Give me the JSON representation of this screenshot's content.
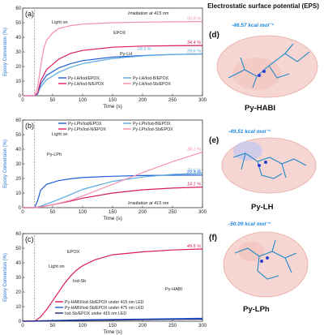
{
  "chart_data": [
    {
      "type": "line",
      "panel": "(a)",
      "xlabel": "Time (s)",
      "ylabel": "Epoxy Conversion (%)",
      "xlim": [
        0,
        300
      ],
      "ylim": [
        0,
        60
      ],
      "xticks": [
        0,
        50,
        100,
        150,
        200,
        250,
        300
      ],
      "yticks": [
        0,
        10,
        20,
        30,
        40,
        50,
        60
      ],
      "annotations": [
        "Irradiation at 415 nm",
        "Light on",
        "EPOX",
        "Py-LH"
      ],
      "legend_position": "bottom",
      "series": [
        {
          "name": "Py-LH/Iod/EPOX",
          "color": "#1f5fd6",
          "end_label": "",
          "points": [
            [
              0,
              0
            ],
            [
              20,
              0
            ],
            [
              25,
              1
            ],
            [
              30,
              8
            ],
            [
              40,
              14
            ],
            [
              60,
              19
            ],
            [
              80,
              22
            ],
            [
              100,
              24
            ],
            [
              150,
              26.5
            ],
            [
              200,
              27.5
            ],
            [
              250,
              28.2
            ],
            [
              300,
              28.6
            ]
          ]
        },
        {
          "name": "Py-LH/Iod-B/EPOX",
          "color": "#5aa8e0",
          "end_label": "28.6 %",
          "points": [
            [
              0,
              0
            ],
            [
              20,
              0
            ],
            [
              25,
              1
            ],
            [
              30,
              6
            ],
            [
              40,
              11
            ],
            [
              60,
              16
            ],
            [
              80,
              19.5
            ],
            [
              100,
              22
            ],
            [
              150,
              25.5
            ],
            [
              200,
              27.3
            ],
            [
              250,
              28.2
            ],
            [
              300,
              28.6
            ]
          ]
        },
        {
          "name": "Py-LH/Iod-N/EPOX",
          "color": "#d81b60",
          "end_label": "34.4 %",
          "points": [
            [
              0,
              0
            ],
            [
              20,
              0
            ],
            [
              25,
              2
            ],
            [
              30,
              10
            ],
            [
              40,
              18
            ],
            [
              60,
              25
            ],
            [
              80,
              29
            ],
            [
              100,
              31
            ],
            [
              150,
              33.2
            ],
            [
              200,
              34
            ],
            [
              250,
              34.2
            ],
            [
              300,
              34.4
            ]
          ]
        },
        {
          "name": "Py-LH/Iod-Sb/EPOX",
          "color": "#f48fb1",
          "end_label": "50.8 %",
          "points": [
            [
              0,
              0
            ],
            [
              20,
              0
            ],
            [
              25,
              6
            ],
            [
              30,
              20
            ],
            [
              35,
              32
            ],
            [
              40,
              38
            ],
            [
              50,
              43
            ],
            [
              60,
              46
            ],
            [
              80,
              48
            ],
            [
              100,
              49
            ],
            [
              150,
              50
            ],
            [
              200,
              50.4
            ],
            [
              250,
              50.6
            ],
            [
              300,
              50.8
            ]
          ]
        }
      ],
      "extra_labels": [
        "29.5 %"
      ]
    },
    {
      "type": "line",
      "panel": "(b)",
      "xlabel": "Time (s)",
      "ylabel": "Epoxy Conversion (%)",
      "xlim": [
        0,
        300
      ],
      "ylim": [
        0,
        60
      ],
      "xticks": [
        0,
        50,
        100,
        150,
        200,
        250,
        300
      ],
      "yticks": [
        0,
        10,
        20,
        30,
        40,
        50,
        60
      ],
      "annotations": [
        "Light on",
        "Py-LPh",
        "Irradiation at 415 nm"
      ],
      "legend_position": "top",
      "series": [
        {
          "name": "Py-LPh/Iod/EPOX",
          "color": "#1f5fd6",
          "end_label": "22.3 %",
          "points": [
            [
              0,
              0
            ],
            [
              20,
              0
            ],
            [
              25,
              5
            ],
            [
              30,
              12
            ],
            [
              40,
              16
            ],
            [
              60,
              18.5
            ],
            [
              80,
              19.8
            ],
            [
              100,
              20.6
            ],
            [
              150,
              21.5
            ],
            [
              200,
              22
            ],
            [
              250,
              22.2
            ],
            [
              300,
              22.3
            ]
          ]
        },
        {
          "name": "Py-LPh/Iod-B/EPOX",
          "color": "#5aa8e0",
          "end_label": "23.6 %",
          "points": [
            [
              0,
              0
            ],
            [
              20,
              0
            ],
            [
              30,
              1
            ],
            [
              50,
              4
            ],
            [
              80,
              9
            ],
            [
              100,
              12.5
            ],
            [
              150,
              18
            ],
            [
              200,
              21
            ],
            [
              250,
              22.8
            ],
            [
              300,
              23.6
            ]
          ]
        },
        {
          "name": "Py-LPh/Iod-N/EPOX",
          "color": "#d81b60",
          "end_label": "14.1 %",
          "points": [
            [
              0,
              0
            ],
            [
              20,
              0
            ],
            [
              30,
              0.5
            ],
            [
              50,
              2
            ],
            [
              80,
              4.5
            ],
            [
              100,
              6.5
            ],
            [
              150,
              10
            ],
            [
              200,
              12.2
            ],
            [
              250,
              13.4
            ],
            [
              300,
              14.1
            ]
          ]
        },
        {
          "name": "Py-LPh/Iod-Sb/EPOX",
          "color": "#f48fb1",
          "end_label": "38.1 %",
          "points": [
            [
              0,
              0
            ],
            [
              20,
              0
            ],
            [
              30,
              0.5
            ],
            [
              50,
              2
            ],
            [
              80,
              5
            ],
            [
              100,
              8
            ],
            [
              150,
              16
            ],
            [
              200,
              24
            ],
            [
              250,
              31.5
            ],
            [
              300,
              38.1
            ]
          ]
        }
      ]
    },
    {
      "type": "line",
      "panel": "(c)",
      "xlabel": "Time (s)",
      "ylabel": "Epoxy Conversion (%)",
      "xlim": [
        0,
        300
      ],
      "ylim": [
        0,
        60
      ],
      "xticks": [
        0,
        50,
        100,
        150,
        200,
        250,
        300
      ],
      "yticks": [
        0,
        10,
        20,
        30,
        40,
        50,
        60
      ],
      "annotations": [
        "EPOX",
        "Light on",
        "Iod-Sb",
        "Py-HABI"
      ],
      "legend_position": "bottom-left",
      "series": [
        {
          "name": "Py-HABI/Iod-Sb/EPOX under 415 nm LED",
          "color": "#d81b60",
          "end_label": "49.5 %",
          "points": [
            [
              0,
              0
            ],
            [
              20,
              0
            ],
            [
              30,
              3
            ],
            [
              40,
              8
            ],
            [
              50,
              14
            ],
            [
              60,
              20
            ],
            [
              70,
              26
            ],
            [
              80,
              31
            ],
            [
              90,
              35
            ],
            [
              100,
              38
            ],
            [
              120,
              42
            ],
            [
              150,
              45.5
            ],
            [
              200,
              47.5
            ],
            [
              250,
              48.8
            ],
            [
              300,
              49.5
            ]
          ]
        },
        {
          "name": "Py-HABI/Iod-Sb/EPOX under 475 nm LED",
          "color": "#1f5fd6",
          "end_label": "",
          "points": [
            [
              0,
              0
            ],
            [
              50,
              0.5
            ],
            [
              100,
              1
            ],
            [
              150,
              1.2
            ],
            [
              200,
              1.5
            ],
            [
              250,
              1.8
            ],
            [
              300,
              2
            ]
          ]
        },
        {
          "name": "Iod-Sb/EPOX under 415 nm LED",
          "color": "#1a237e",
          "end_label": "",
          "points": [
            [
              0,
              0
            ],
            [
              50,
              0.3
            ],
            [
              100,
              0.6
            ],
            [
              150,
              0.8
            ],
            [
              200,
              1
            ],
            [
              250,
              1.2
            ],
            [
              300,
              1.4
            ]
          ]
        }
      ]
    }
  ],
  "eps": {
    "title": "Electrostatic surface potential (EPS)",
    "panels": [
      {
        "letter": "(d)",
        "value": "-46.57 kcal mol⁻¹",
        "name": "Py-HABI"
      },
      {
        "letter": "(e)",
        "value": "-49.51 kcal mol⁻¹",
        "name": "Py-LH"
      },
      {
        "letter": "(f)",
        "value": "-50.09 kcal mol⁻¹",
        "name": "Py-LPh"
      }
    ]
  }
}
